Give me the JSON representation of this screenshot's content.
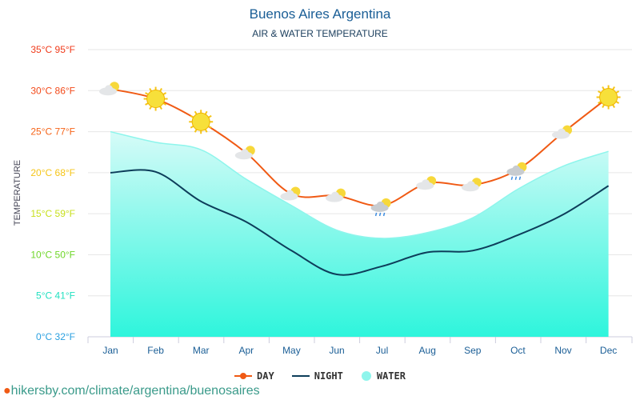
{
  "title": "Buenos Aires Argentina",
  "subtitle": "AIR & WATER TEMPERATURE",
  "footer_url": "hikersby.com/climate/argentina/buenosaires",
  "chart_data": {
    "type": "line",
    "ylabel": "TEMPERATURE",
    "ylim": [
      0,
      35
    ],
    "yticks": [
      {
        "value": 35,
        "label": "35°C 95°F",
        "color": "#f03a1a"
      },
      {
        "value": 30,
        "label": "30°C 86°F",
        "color": "#f34a1a"
      },
      {
        "value": 25,
        "label": "25°C 77°F",
        "color": "#f6651a"
      },
      {
        "value": 20,
        "label": "20°C 68°F",
        "color": "#f5c518"
      },
      {
        "value": 15,
        "label": "15°C 59°F",
        "color": "#c8e01e"
      },
      {
        "value": 10,
        "label": "10°C 50°F",
        "color": "#6ed628"
      },
      {
        "value": 5,
        "label": "5°C 41°F",
        "color": "#22e0c0"
      },
      {
        "value": 0,
        "label": "0°C 32°F",
        "color": "#2aa0e0"
      }
    ],
    "categories": [
      "Jan",
      "Feb",
      "Mar",
      "Apr",
      "May",
      "Jun",
      "Jul",
      "Aug",
      "Sep",
      "Oct",
      "Nov",
      "Dec"
    ],
    "grid": true,
    "legend_position": "bottom",
    "series": [
      {
        "name": "DAY",
        "color": "#f05a14",
        "values": [
          30.2,
          29.0,
          26.2,
          22.4,
          17.4,
          17.2,
          16.0,
          18.7,
          18.5,
          20.4,
          24.9,
          29.2
        ]
      },
      {
        "name": "NIGHT",
        "color": "#0d3d5a",
        "values": [
          20.0,
          20.1,
          16.5,
          14.0,
          10.5,
          7.6,
          8.6,
          10.3,
          10.5,
          12.4,
          14.9,
          18.4
        ]
      },
      {
        "name": "WATER",
        "color": "#8ef5ec",
        "values": [
          25.0,
          23.7,
          22.8,
          19.2,
          16.0,
          13.0,
          12.0,
          12.7,
          14.5,
          18.0,
          20.8,
          22.6
        ]
      }
    ],
    "weather_icons": [
      "partly-cloudy",
      "sun",
      "sun",
      "partly-cloudy",
      "partly-cloudy",
      "partly-cloudy",
      "rain",
      "partly-cloudy",
      "partly-cloudy",
      "rain",
      "partly-cloudy",
      "sun"
    ]
  }
}
